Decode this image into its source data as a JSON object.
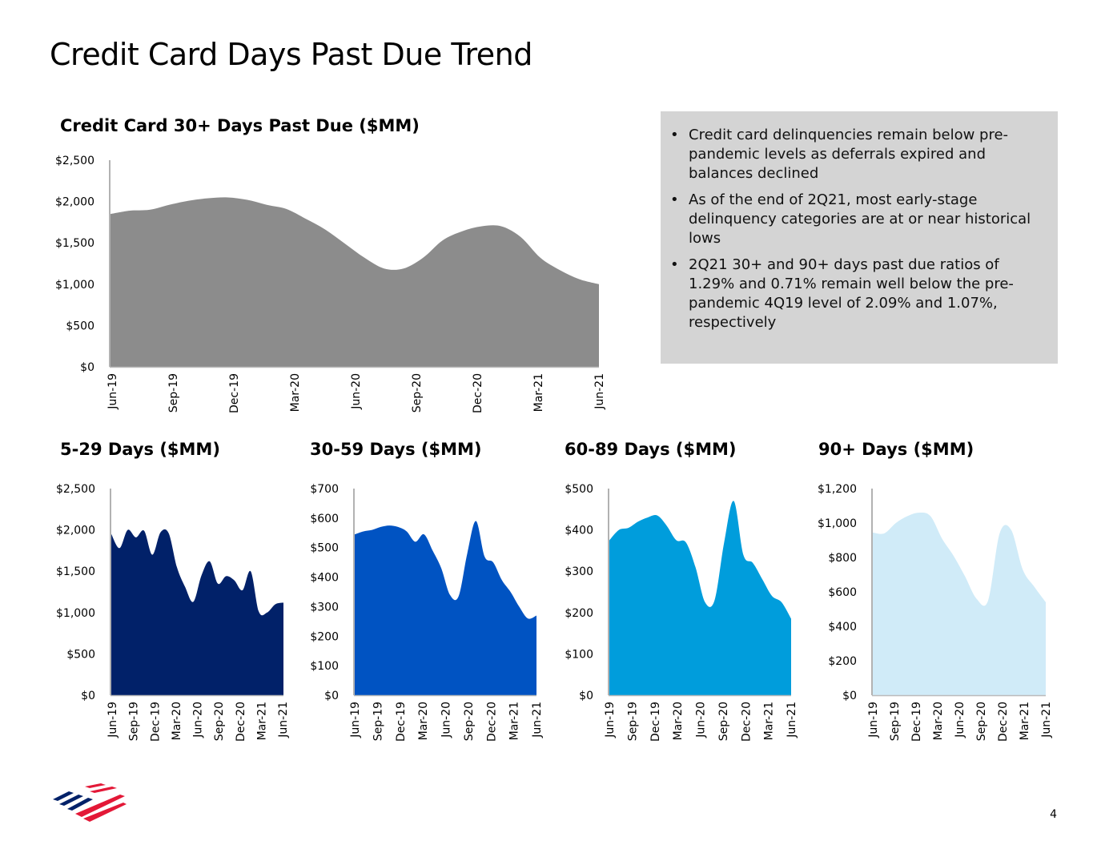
{
  "page": {
    "title": "Credit Card Days Past Due Trend",
    "page_number": "4",
    "logo": "bank-of-america-flag-logo"
  },
  "notes": [
    "Credit card delinquencies remain below pre-pandemic levels as deferrals expired and balances declined",
    "As of the end of 2Q21, most early-stage delinquency categories are at or near historical lows",
    "2Q21 30+ and 90+ days past due ratios of 1.29% and 0.71% remain well below the pre-pandemic 4Q19 level of 2.09% and 1.07%, respectively"
  ],
  "chart_data": [
    {
      "id": "dpd30",
      "type": "area",
      "title": "Credit Card 30+ Days Past Due ($MM)",
      "color": "#8c8c8c",
      "ylim": [
        0,
        2500
      ],
      "yticks": [
        0,
        500,
        1000,
        1500,
        2000,
        2500
      ],
      "tick_prefix": "$",
      "x_labels": [
        "Jun-19",
        "Sep-19",
        "Dec-19",
        "Mar-20",
        "Jun-20",
        "Sep-20",
        "Dec-20",
        "Mar-21",
        "Jun-21"
      ],
      "values": [
        1850,
        1890,
        1900,
        1960,
        2010,
        2040,
        2050,
        2020,
        1960,
        1910,
        1790,
        1660,
        1490,
        1320,
        1190,
        1190,
        1320,
        1530,
        1640,
        1700,
        1700,
        1570,
        1320,
        1170,
        1060,
        1000
      ]
    },
    {
      "id": "dpd529",
      "type": "area",
      "title": "5-29 Days ($MM)",
      "color": "#012169",
      "ylim": [
        0,
        2500
      ],
      "yticks": [
        0,
        500,
        1000,
        1500,
        2000,
        2500
      ],
      "tick_prefix": "$",
      "x_labels": [
        "Jun-19",
        "Sep-19",
        "Dec-19",
        "Mar-20",
        "Jun-20",
        "Sep-20",
        "Dec-20",
        "Mar-21",
        "Jun-21"
      ],
      "values": [
        1950,
        1780,
        2000,
        1910,
        1990,
        1700,
        1970,
        1960,
        1550,
        1310,
        1130,
        1450,
        1620,
        1350,
        1440,
        1390,
        1270,
        1500,
        1010,
        1000,
        1100,
        1120
      ]
    },
    {
      "id": "dpd3059",
      "type": "area",
      "title": "30-59 Days ($MM)",
      "color": "#0053c2",
      "ylim": [
        0,
        700
      ],
      "yticks": [
        0,
        100,
        200,
        300,
        400,
        500,
        600,
        700
      ],
      "tick_prefix": "$",
      "x_labels": [
        "Jun-19",
        "Sep-19",
        "Dec-19",
        "Mar-20",
        "Jun-20",
        "Sep-20",
        "Dec-20",
        "Mar-21",
        "Jun-21"
      ],
      "values": [
        545,
        555,
        560,
        570,
        575,
        570,
        555,
        520,
        545,
        490,
        430,
        340,
        335,
        480,
        590,
        470,
        450,
        390,
        350,
        300,
        260,
        270
      ]
    },
    {
      "id": "dpd6089",
      "type": "area",
      "title": "60-89 Days ($MM)",
      "color": "#009ddc",
      "ylim": [
        0,
        500
      ],
      "yticks": [
        0,
        100,
        200,
        300,
        400,
        500
      ],
      "tick_prefix": "$",
      "x_labels": [
        "Jun-19",
        "Sep-19",
        "Dec-19",
        "Mar-20",
        "Jun-20",
        "Sep-20",
        "Dec-20",
        "Mar-21",
        "Jun-21"
      ],
      "values": [
        375,
        400,
        405,
        420,
        430,
        435,
        410,
        375,
        370,
        310,
        225,
        230,
        370,
        470,
        340,
        320,
        280,
        240,
        225,
        185
      ]
    },
    {
      "id": "dpd90",
      "type": "area",
      "title": "90+ Days ($MM)",
      "color": "#d0ebf8",
      "ylim": [
        0,
        1200
      ],
      "yticks": [
        0,
        200,
        400,
        600,
        800,
        1000,
        1200
      ],
      "tick_prefix": "$",
      "x_labels": [
        "Jun-19",
        "Sep-19",
        "Dec-19",
        "Mar-20",
        "Jun-20",
        "Sep-20",
        "Dec-20",
        "Mar-21",
        "Jun-21"
      ],
      "values": [
        945,
        940,
        1000,
        1040,
        1060,
        1040,
        910,
        810,
        690,
        560,
        550,
        940,
        960,
        730,
        630,
        540
      ]
    }
  ]
}
